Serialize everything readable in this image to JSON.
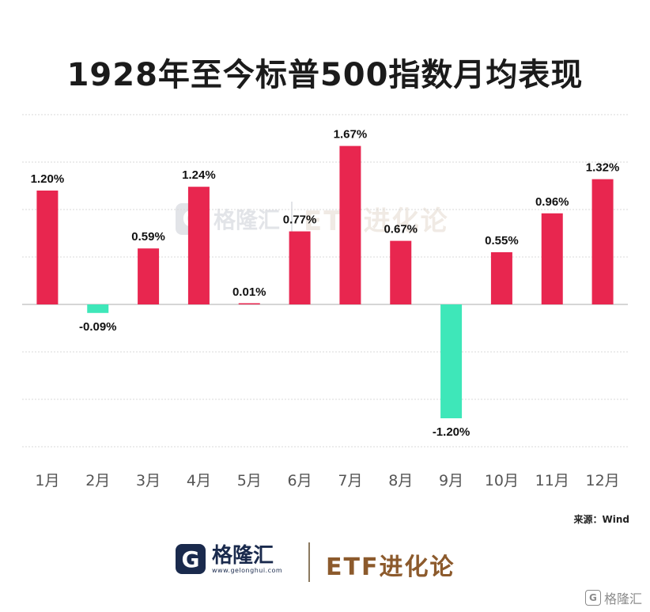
{
  "chart_data": {
    "type": "bar",
    "title": "1928年至今标普500指数月均表现",
    "categories": [
      "1月",
      "2月",
      "3月",
      "4月",
      "5月",
      "6月",
      "7月",
      "8月",
      "9月",
      "10月",
      "11月",
      "12月"
    ],
    "values": [
      1.2,
      -0.09,
      0.59,
      1.24,
      0.01,
      0.77,
      1.67,
      0.67,
      -1.2,
      0.55,
      0.96,
      1.32
    ],
    "value_labels": [
      "1.20%",
      "-0.09%",
      "0.59%",
      "1.24%",
      "0.01%",
      "0.77%",
      "1.67%",
      "0.67%",
      "-1.20%",
      "0.55%",
      "0.96%",
      "1.32%"
    ],
    "ylim": [
      -1.5,
      2.0
    ],
    "grid": true,
    "positive_color": "#e8264f",
    "negative_color": "#3ee7b9",
    "xlabel": "",
    "ylabel": ""
  },
  "source": "来源：Wind",
  "footer": {
    "brand_logo_letter": "G",
    "brand_name": "格隆汇",
    "brand_url": "www.gelonghui.com",
    "etf_brand": "ETF进化论"
  },
  "watermark": {
    "logo_letter": "G",
    "name": "格隆汇",
    "etf": "ETF进化论"
  },
  "corner_watermark": {
    "logo_letter": "G",
    "text": "格隆汇"
  }
}
